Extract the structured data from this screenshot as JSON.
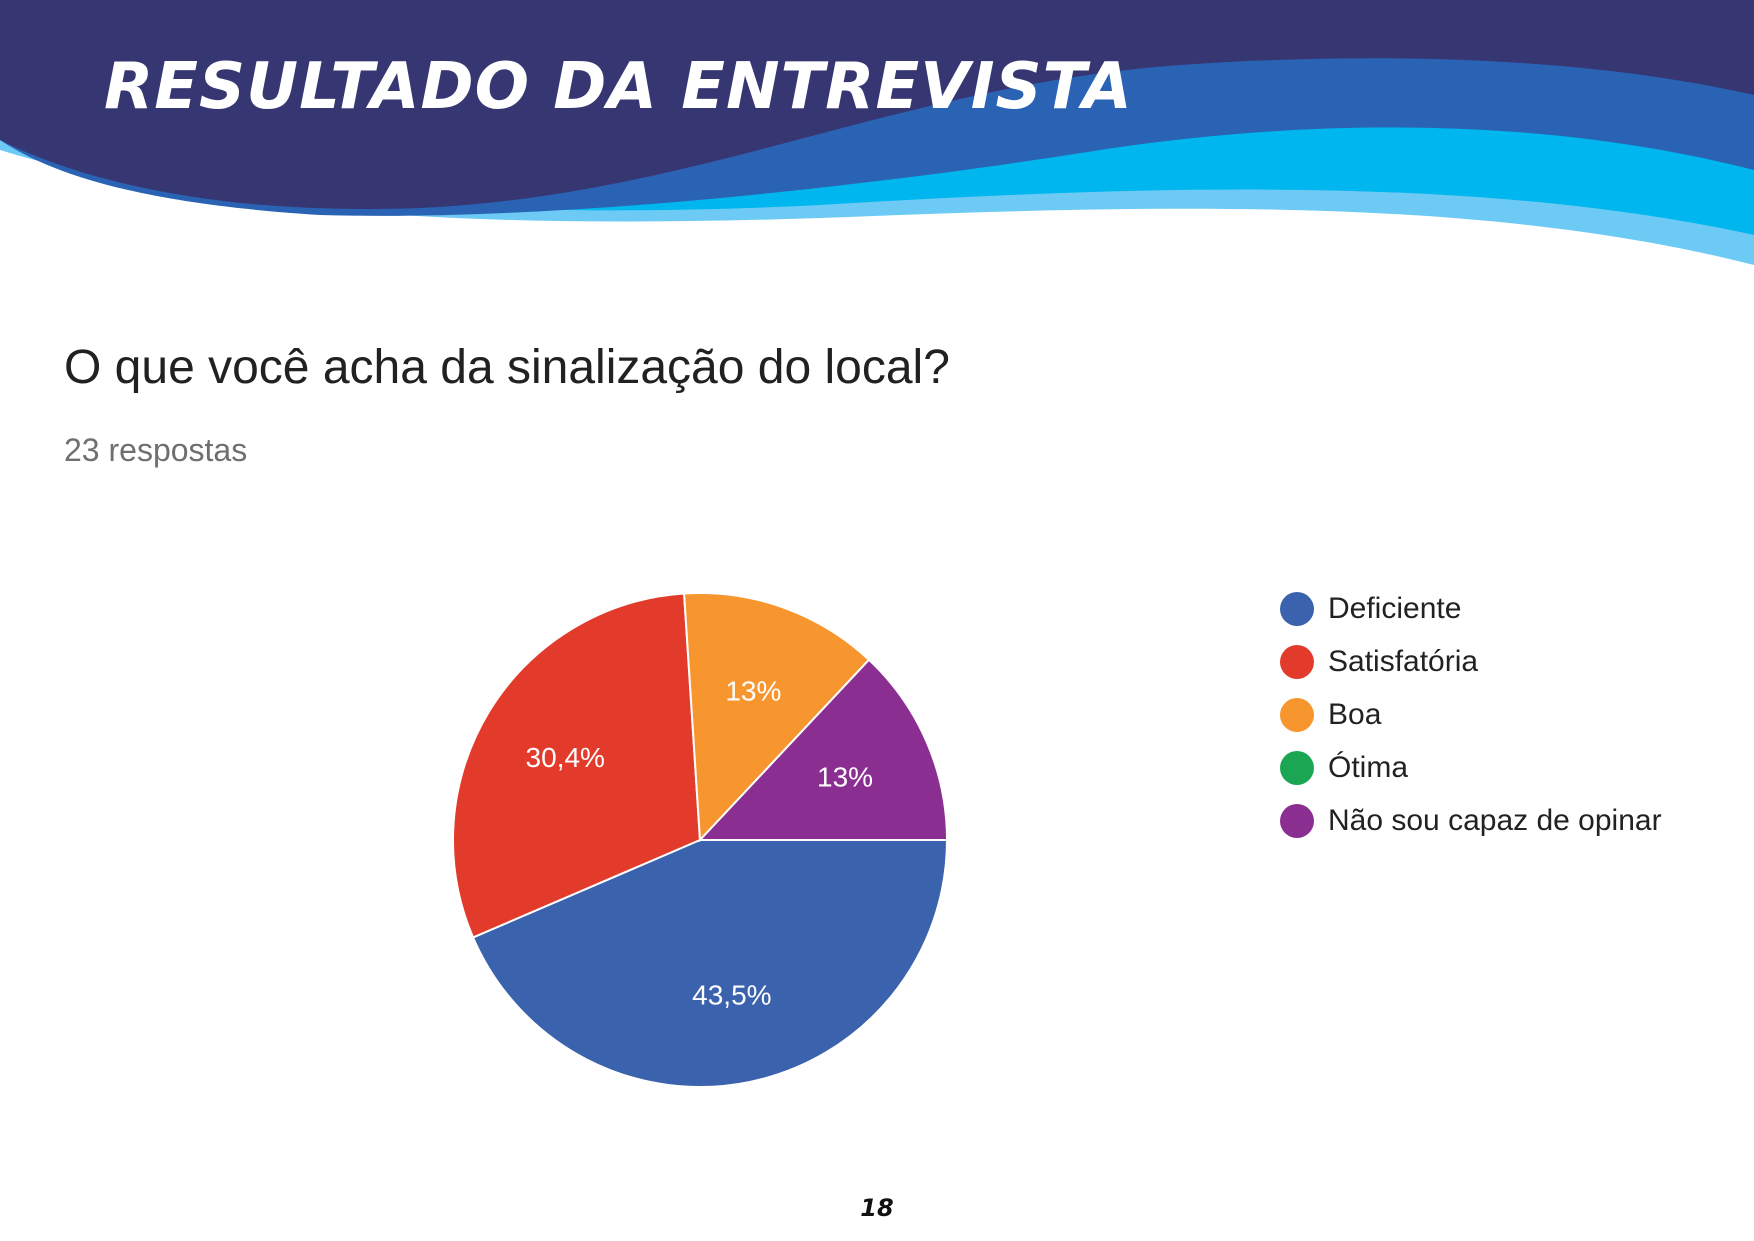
{
  "header": {
    "title": "RESULTADO DA ENTREVISTA"
  },
  "question": {
    "text": "O que você acha da sinalização do local?",
    "responses": "23 respostas"
  },
  "colors": {
    "banner_dark": "#363672",
    "banner_mid": "#2a63b4",
    "banner_light": "#00b6ee",
    "banner_pale": "#6dcaf4"
  },
  "chart_data": {
    "type": "pie",
    "title": "O que você acha da sinalização do local?",
    "subtitle": "23 respostas",
    "legend_position": "right",
    "slices": [
      {
        "label": "Deficiente",
        "value": 43.5,
        "display": "43,5%",
        "color": "#3a62ad"
      },
      {
        "label": "Satisfatória",
        "value": 30.4,
        "display": "30,4%",
        "color": "#e33b2b"
      },
      {
        "label": "Boa",
        "value": 13.0,
        "display": "13%",
        "color": "#f7962f"
      },
      {
        "label": "Ótima",
        "value": 0,
        "display": "",
        "color": "#1aa652"
      },
      {
        "label": "Não sou capaz de opinar",
        "value": 13.0,
        "display": "13%",
        "color": "#8a2f91"
      }
    ]
  },
  "footer": {
    "page_number": "18"
  }
}
